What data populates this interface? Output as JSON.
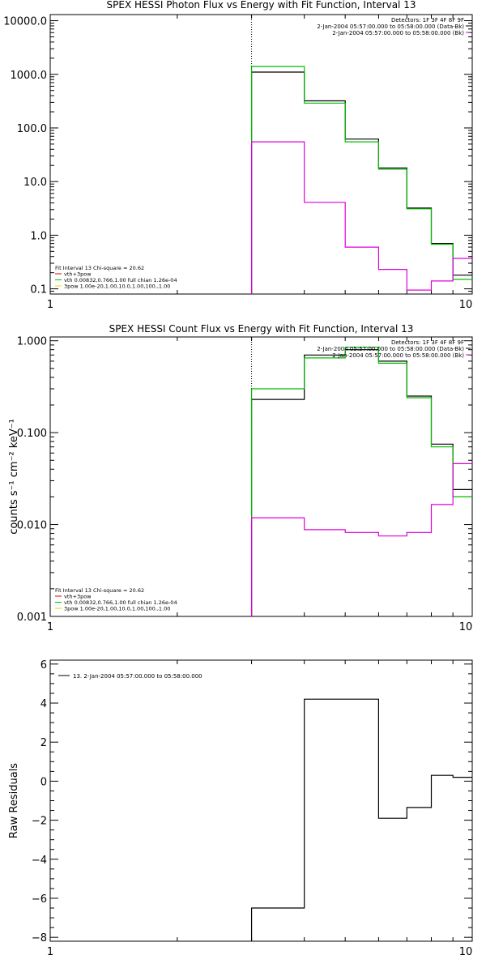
{
  "chart_data": [
    {
      "type": "line",
      "title": "SPEX HESSI Photon Flux vs Energy with Fit Function, Interval 13",
      "xscale": "log",
      "yscale": "log",
      "xlim": [
        1,
        10
      ],
      "ylim": [
        0.08,
        13000
      ],
      "xticks": [
        {
          "v": 1,
          "label": "1"
        },
        {
          "v": 10,
          "label": "10"
        }
      ],
      "yticks": [
        {
          "v": 0.1,
          "label": "0.1"
        },
        {
          "v": 1,
          "label": "1.0"
        },
        {
          "v": 10,
          "label": "10.0"
        },
        {
          "v": 100,
          "label": "100.0"
        },
        {
          "v": 1000,
          "label": "1000.0"
        },
        {
          "v": 10000,
          "label": "10000.0"
        }
      ],
      "vline": 3,
      "legend_top": [
        {
          "text": "Detectors: 1F 3F 4F 8F 9F",
          "color": ""
        },
        {
          "text": "2-Jan-2004 05:57:00.000 to 05:58:00.000 (Data-Bk)",
          "color": "#000000"
        },
        {
          "text": "2-Jan-2004 05:57:00.000 to 05:58:00.000 (Bk)",
          "color": "#dd00dd"
        }
      ],
      "legend_bottom": [
        {
          "text": "Fit Interval 13   Chi-square = 20.62",
          "color": ""
        },
        {
          "text": "vth+3pow",
          "color": "#dd0000"
        },
        {
          "text": "vth 0.00832,0.766,1.00   full chian 1.26e-04",
          "color": "#00bb00"
        },
        {
          "text": "3pow 1.00e-20,1.00,10.0,1.00,100.,1.00",
          "color": "#dddd00"
        }
      ],
      "series": [
        {
          "color": "#000000",
          "edges": [
            3,
            4,
            5,
            6,
            7,
            8,
            9,
            10
          ],
          "values": [
            1100,
            320,
            62,
            18,
            3.2,
            0.7,
            0.18
          ]
        },
        {
          "color": "#00bb00",
          "edges": [
            3,
            4,
            5,
            6,
            7,
            8,
            9,
            10
          ],
          "values": [
            1400,
            290,
            55,
            17,
            3.1,
            0.68,
            0.15
          ]
        },
        {
          "color": "#dd00dd",
          "edges": [
            3,
            4,
            5,
            6,
            7,
            8,
            9,
            10
          ],
          "values": [
            55,
            4.1,
            0.6,
            0.23,
            0.095,
            0.14,
            0.37
          ]
        }
      ]
    },
    {
      "type": "line",
      "title": "SPEX HESSI Count Flux vs Energy with Fit Function, Interval 13",
      "ylabel": "counts s⁻¹ cm⁻² keV⁻¹",
      "xscale": "log",
      "yscale": "log",
      "xlim": [
        1,
        10
      ],
      "ylim": [
        0.001,
        1.1
      ],
      "xticks": [
        {
          "v": 1,
          "label": "1"
        },
        {
          "v": 10,
          "label": "10"
        }
      ],
      "yticks": [
        {
          "v": 0.001,
          "label": "0.001"
        },
        {
          "v": 0.01,
          "label": "0.010"
        },
        {
          "v": 0.1,
          "label": "0.100"
        },
        {
          "v": 1,
          "label": "1.000"
        }
      ],
      "vline": 3,
      "legend_top": [
        {
          "text": "Detectors: 1F 3F 4F 8F 9F",
          "color": ""
        },
        {
          "text": "2-Jan-2004 05:57:00.000 to 05:58:00.000 (Data-Bk)",
          "color": "#000000"
        },
        {
          "text": "2-Jan-2004 05:57:00.000 to 05:58:00.000 (Bk)",
          "color": "#dd00dd"
        }
      ],
      "legend_bottom": [
        {
          "text": "Fit Interval 13   Chi-square = 20.62",
          "color": ""
        },
        {
          "text": "vth+3pow",
          "color": "#dd0000"
        },
        {
          "text": "vth 0.00832,0.766,1.00   full chian 1.26e-04",
          "color": "#00bb00"
        },
        {
          "text": "3pow 1.00e-20,1.00,10.0,1.00,100.,1.00",
          "color": "#dddd00"
        }
      ],
      "series": [
        {
          "color": "#000000",
          "edges": [
            3,
            4,
            5,
            6,
            7,
            8,
            9,
            10
          ],
          "values": [
            0.23,
            0.7,
            0.8,
            0.6,
            0.25,
            0.075,
            0.024
          ]
        },
        {
          "color": "#00bb00",
          "edges": [
            3,
            4,
            5,
            6,
            7,
            8,
            9,
            10
          ],
          "values": [
            0.3,
            0.65,
            0.85,
            0.57,
            0.24,
            0.07,
            0.02
          ]
        },
        {
          "color": "#dd00dd",
          "edges": [
            3,
            4,
            5,
            6,
            7,
            8,
            9,
            10
          ],
          "values": [
            0.0118,
            0.0088,
            0.0082,
            0.0075,
            0.0082,
            0.0165,
            0.046
          ]
        }
      ]
    },
    {
      "type": "line",
      "title": "",
      "ylabel": "Raw Residuals",
      "xscale": "log",
      "yscale": "linear",
      "xlim": [
        1,
        10
      ],
      "ylim": [
        -8.2,
        6.2
      ],
      "xticks": [
        {
          "v": 1,
          "label": "1"
        },
        {
          "v": 10,
          "label": "10"
        }
      ],
      "yticks": [
        {
          "v": -8,
          "label": "−8"
        },
        {
          "v": -6,
          "label": "−6"
        },
        {
          "v": -4,
          "label": "−4"
        },
        {
          "v": -2,
          "label": "−2"
        },
        {
          "v": 0,
          "label": "0"
        },
        {
          "v": 2,
          "label": "2"
        },
        {
          "v": 4,
          "label": "4"
        },
        {
          "v": 6,
          "label": "6"
        }
      ],
      "legend_top": [
        {
          "text": "13.  2-Jan-2004 05:57:00.000 to 05:58:00.000",
          "color": "#000000"
        }
      ],
      "series": [
        {
          "color": "#000000",
          "edges": [
            3,
            4,
            5,
            6,
            7,
            8,
            9,
            10
          ],
          "values": [
            -6.5,
            4.2,
            4.2,
            -1.9,
            -1.35,
            0.3,
            0.2
          ]
        }
      ]
    }
  ]
}
